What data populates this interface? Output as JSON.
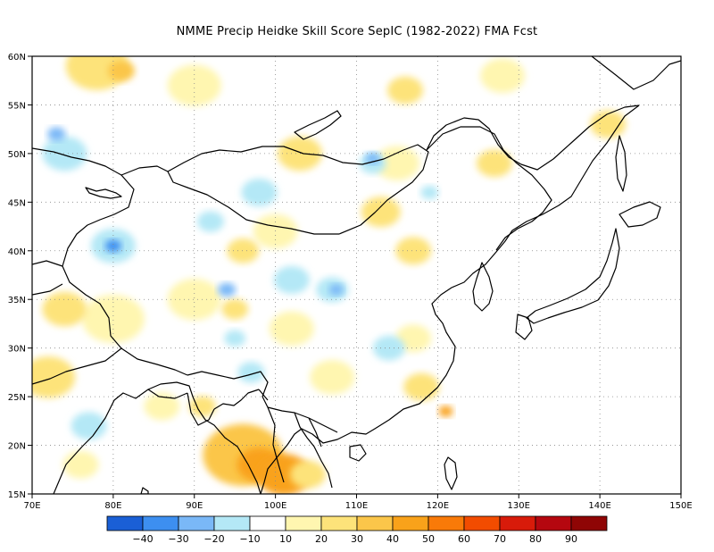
{
  "title": "NMME Precip Heidke Skill Score SepIC (1982-2022) FMA Fcst",
  "map": {
    "lon_range": [
      70,
      150
    ],
    "lat_range": [
      15,
      60
    ],
    "lon_ticks": [
      70,
      80,
      90,
      100,
      110,
      120,
      130,
      140,
      150
    ],
    "lon_labels": [
      "70E",
      "80E",
      "90E",
      "100E",
      "110E",
      "120E",
      "130E",
      "140E",
      "150E"
    ],
    "lat_ticks": [
      15,
      20,
      25,
      30,
      35,
      40,
      45,
      50,
      55,
      60
    ],
    "lat_labels": [
      "15N",
      "20N",
      "25N",
      "30N",
      "35N",
      "40N",
      "45N",
      "50N",
      "55N",
      "60N"
    ],
    "gridlines": true
  },
  "legend": {
    "colors": [
      "#1a5fd6",
      "#3d8ff0",
      "#7ab8f7",
      "#b4e8f6",
      "#ffffff",
      "#fff6b0",
      "#fde37a",
      "#fbc64a",
      "#f9a21a",
      "#f97a08",
      "#f24c00",
      "#d81b0a",
      "#b5070f",
      "#8f0505"
    ],
    "labels": [
      "-40",
      "-30",
      "-20",
      "-10",
      "10",
      "20",
      "30",
      "40",
      "50",
      "60",
      "70",
      "80",
      "90"
    ]
  },
  "regions": [
    {
      "lon": 96,
      "lat": 19,
      "r": 4.5,
      "color": "#fbc64a"
    },
    {
      "lon": 98,
      "lat": 18,
      "r": 2.5,
      "color": "#f9a21a"
    },
    {
      "lon": 101,
      "lat": 17,
      "r": 3.0,
      "color": "#f9a21a"
    },
    {
      "lon": 104,
      "lat": 17,
      "r": 2.0,
      "color": "#fde37a"
    },
    {
      "lon": 121,
      "lat": 23.5,
      "r": 0.8,
      "color": "#f9a21a"
    },
    {
      "lon": 78,
      "lat": 59,
      "r": 3.5,
      "color": "#fde37a"
    },
    {
      "lon": 81,
      "lat": 58.5,
      "r": 1.5,
      "color": "#fbc64a"
    },
    {
      "lon": 90,
      "lat": 57,
      "r": 3.0,
      "color": "#fff6b0"
    },
    {
      "lon": 116,
      "lat": 56.5,
      "r": 2.0,
      "color": "#fde37a"
    },
    {
      "lon": 128,
      "lat": 58,
      "r": 2.5,
      "color": "#fff6b0"
    },
    {
      "lon": 141,
      "lat": 53,
      "r": 2.0,
      "color": "#fde37a"
    },
    {
      "lon": 103,
      "lat": 50,
      "r": 2.5,
      "color": "#fde37a"
    },
    {
      "lon": 115,
      "lat": 49,
      "r": 2.5,
      "color": "#fff6b0"
    },
    {
      "lon": 127,
      "lat": 49,
      "r": 2.0,
      "color": "#fde37a"
    },
    {
      "lon": 113,
      "lat": 44,
      "r": 2.2,
      "color": "#fde37a"
    },
    {
      "lon": 100,
      "lat": 42,
      "r": 2.5,
      "color": "#fff6b0"
    },
    {
      "lon": 96,
      "lat": 40,
      "r": 1.8,
      "color": "#fde37a"
    },
    {
      "lon": 117,
      "lat": 40,
      "r": 2.0,
      "color": "#fde37a"
    },
    {
      "lon": 90,
      "lat": 35,
      "r": 3.0,
      "color": "#fff6b0"
    },
    {
      "lon": 95,
      "lat": 34,
      "r": 1.5,
      "color": "#fde37a"
    },
    {
      "lon": 102,
      "lat": 32,
      "r": 2.5,
      "color": "#fff6b0"
    },
    {
      "lon": 80,
      "lat": 33,
      "r": 3.5,
      "color": "#fff6b0"
    },
    {
      "lon": 74,
      "lat": 34,
      "r": 2.5,
      "color": "#fde37a"
    },
    {
      "lon": 72,
      "lat": 27,
      "r": 3.0,
      "color": "#fde37a"
    },
    {
      "lon": 117,
      "lat": 31,
      "r": 2.0,
      "color": "#fff6b0"
    },
    {
      "lon": 118,
      "lat": 26,
      "r": 2.0,
      "color": "#fde37a"
    },
    {
      "lon": 107,
      "lat": 27,
      "r": 2.5,
      "color": "#fff6b0"
    },
    {
      "lon": 86,
      "lat": 24,
      "r": 2.0,
      "color": "#fff6b0"
    },
    {
      "lon": 91,
      "lat": 24,
      "r": 1.5,
      "color": "#fde37a"
    },
    {
      "lon": 76,
      "lat": 18,
      "r": 2.0,
      "color": "#fff6b0"
    },
    {
      "lon": 74,
      "lat": 50,
      "r": 2.5,
      "color": "#b4e8f6"
    },
    {
      "lon": 73,
      "lat": 52,
      "r": 1.0,
      "color": "#7ab8f7"
    },
    {
      "lon": 112,
      "lat": 49,
      "r": 1.5,
      "color": "#b4e8f6"
    },
    {
      "lon": 112,
      "lat": 49.5,
      "r": 0.8,
      "color": "#7ab8f7"
    },
    {
      "lon": 98,
      "lat": 46,
      "r": 2.0,
      "color": "#b4e8f6"
    },
    {
      "lon": 80,
      "lat": 40.5,
      "r": 2.5,
      "color": "#b4e8f6"
    },
    {
      "lon": 80,
      "lat": 40.5,
      "r": 0.9,
      "color": "#3d8ff0"
    },
    {
      "lon": 92,
      "lat": 43,
      "r": 1.5,
      "color": "#b4e8f6"
    },
    {
      "lon": 102,
      "lat": 37,
      "r": 2.0,
      "color": "#b4e8f6"
    },
    {
      "lon": 107,
      "lat": 36,
      "r": 1.8,
      "color": "#b4e8f6"
    },
    {
      "lon": 107.5,
      "lat": 36,
      "r": 0.8,
      "color": "#7ab8f7"
    },
    {
      "lon": 114,
      "lat": 30,
      "r": 1.8,
      "color": "#b4e8f6"
    },
    {
      "lon": 97,
      "lat": 27.5,
      "r": 1.5,
      "color": "#b4e8f6"
    },
    {
      "lon": 77,
      "lat": 22,
      "r": 2.0,
      "color": "#b4e8f6"
    },
    {
      "lon": 95,
      "lat": 31,
      "r": 1.2,
      "color": "#b4e8f6"
    },
    {
      "lon": 119,
      "lat": 46,
      "r": 1.0,
      "color": "#b4e8f6"
    },
    {
      "lon": 94,
      "lat": 36,
      "r": 1.0,
      "color": "#7ab8f7"
    }
  ]
}
